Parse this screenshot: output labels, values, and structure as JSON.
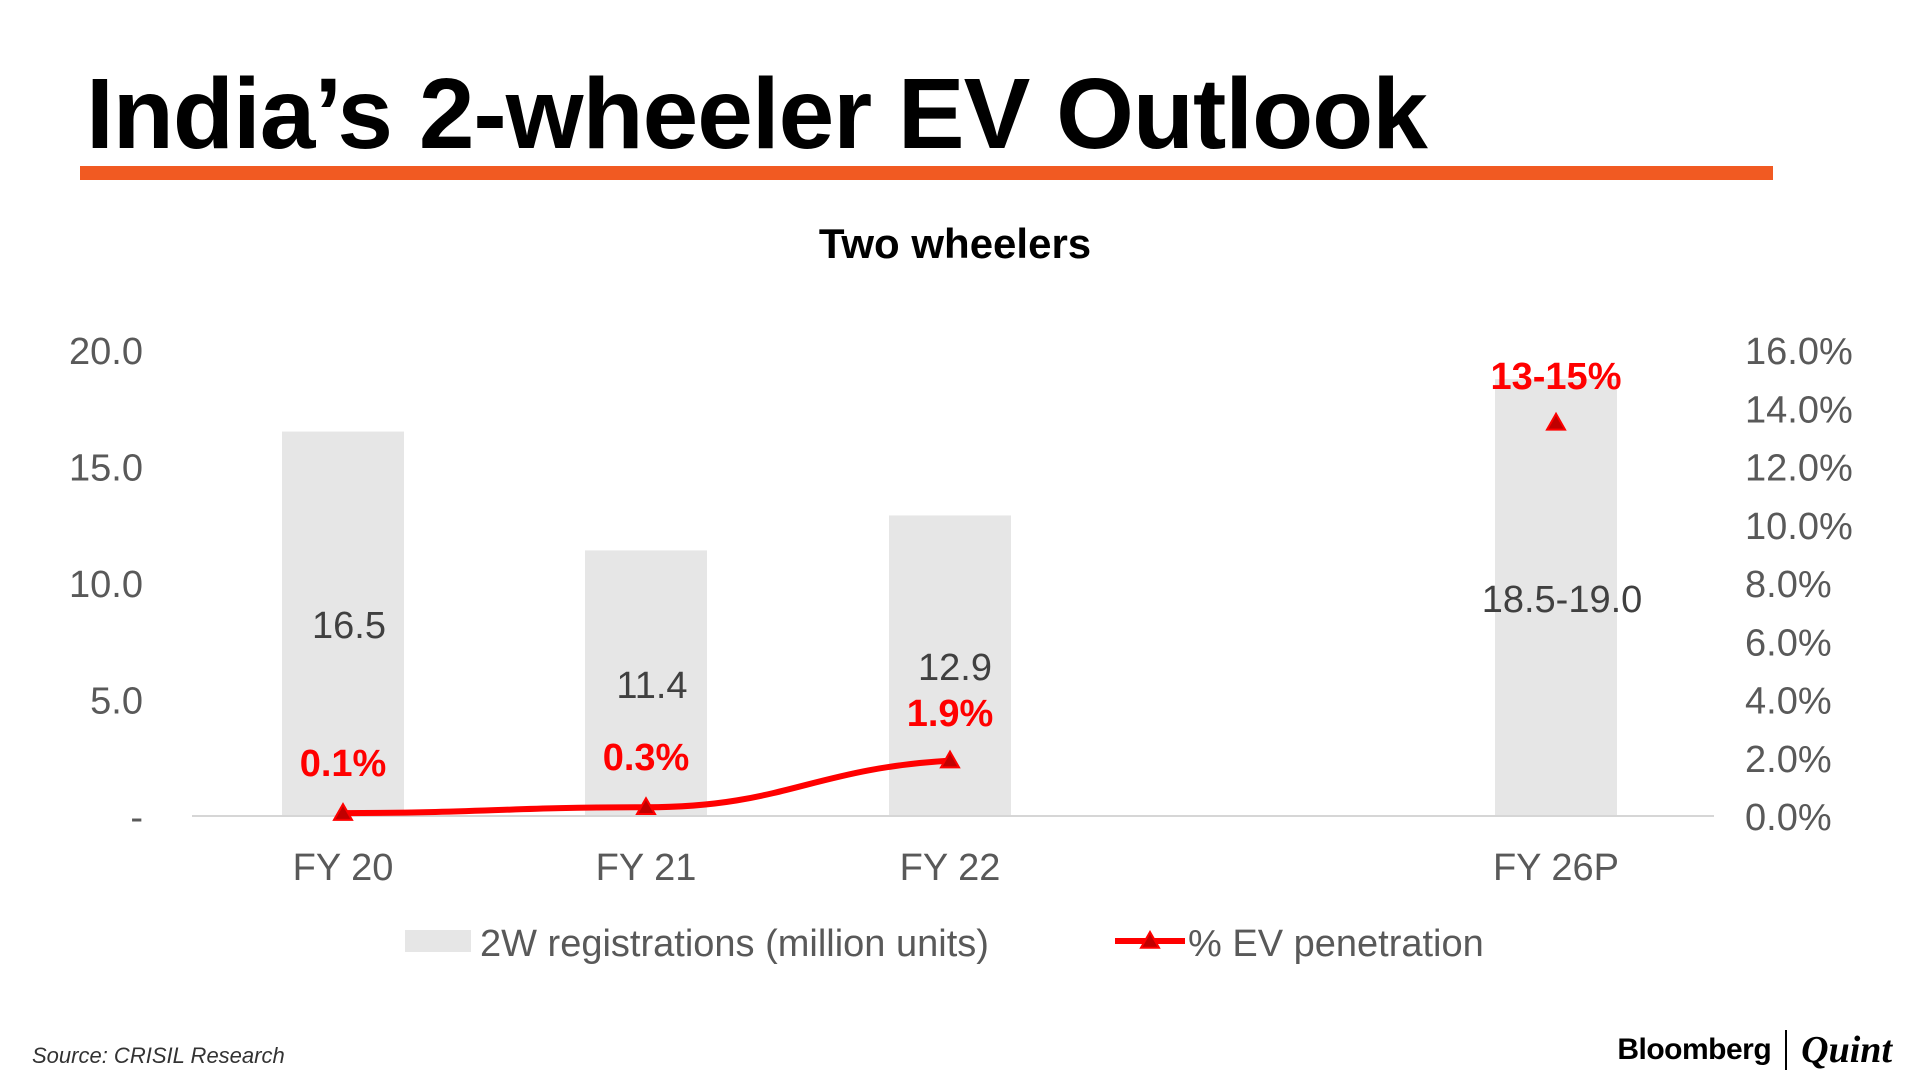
{
  "header": {
    "title": "India’s 2-wheeler EV Outlook",
    "rule_color": "#f15a22"
  },
  "chart_data": {
    "type": "bar",
    "title": "Two wheelers",
    "categories": [
      "FY 20",
      "FY 21",
      "FY 22",
      "FY 26P"
    ],
    "bar_series": {
      "name": "2W registrations (million units)",
      "values": [
        16.5,
        11.4,
        12.9,
        18.75
      ],
      "labels": [
        "16.5",
        "11.4",
        "12.9",
        "18.5-19.0"
      ],
      "color": "#e6e6e6"
    },
    "line_series": {
      "name": "% EV penetration",
      "values": [
        0.1,
        0.3,
        1.9,
        13.5
      ],
      "labels": [
        "0.1%",
        "0.3%",
        "1.9%",
        "13-15%"
      ],
      "color": "#ff0000",
      "marker": "triangle",
      "connect_points": 3
    },
    "y_left": {
      "min": 0,
      "max": 20,
      "ticks": [
        "-",
        "5.0",
        "10.0",
        "15.0",
        "20.0"
      ]
    },
    "y_right": {
      "min": 0,
      "max": 16,
      "ticks": [
        "0.0%",
        "2.0%",
        "4.0%",
        "6.0%",
        "8.0%",
        "10.0%",
        "12.0%",
        "14.0%",
        "16.0%"
      ]
    },
    "legend_position": "bottom"
  },
  "footer": {
    "source": "Source: CRISIL Research",
    "brand_left": "Bloomberg",
    "brand_right": "Quint"
  }
}
